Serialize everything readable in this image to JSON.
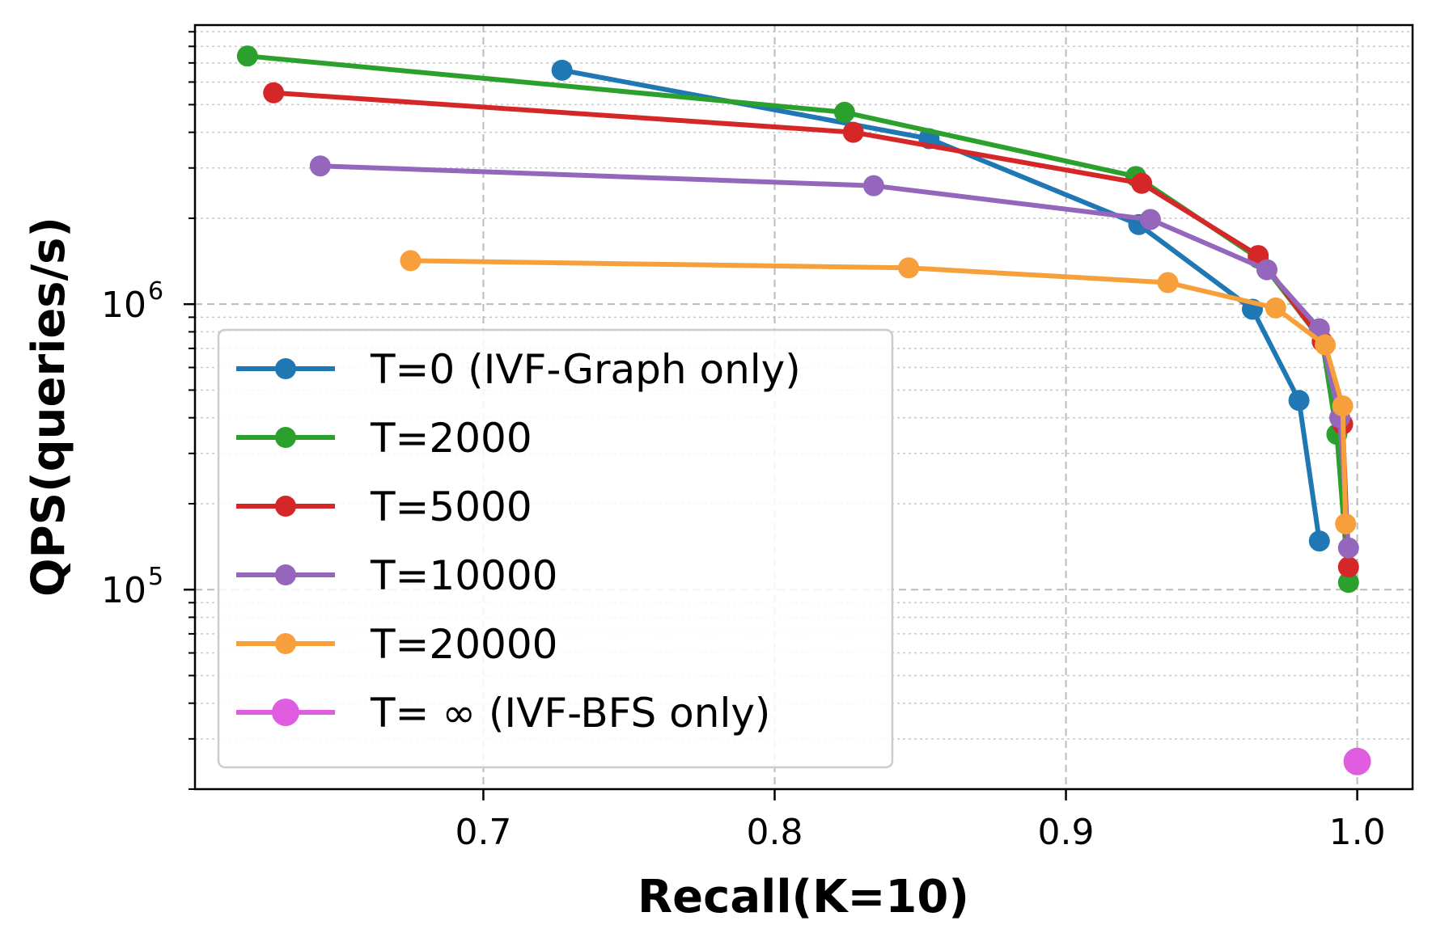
{
  "chart_data": {
    "type": "line",
    "xlabel": "Recall(K=10)",
    "ylabel": "QPS(queries/s)",
    "x_ticks": [
      0.7,
      0.8,
      0.9,
      1.0
    ],
    "x_tick_labels": [
      "0.7",
      "0.8",
      "0.9",
      "1.0"
    ],
    "y_ticks": [
      100000,
      1000000
    ],
    "y_tick_labels": [
      {
        "base": "10",
        "exp": "5"
      },
      {
        "base": "10",
        "exp": "6"
      }
    ],
    "xlim": [
      0.601,
      1.019
    ],
    "ylim": [
      20000,
      9500000
    ],
    "yscale": "log",
    "grid": true,
    "legend_position": "lower-left",
    "series": [
      {
        "name": "T=0 (IVF-Graph only)",
        "color": "#1f77b4",
        "x": [
          0.727,
          0.853,
          0.925,
          0.964,
          0.98,
          0.987
        ],
        "y": [
          6600000,
          3800000,
          1900000,
          960000,
          460000,
          148000
        ]
      },
      {
        "name": "T=2000",
        "color": "#2ca02c",
        "x": [
          0.619,
          0.824,
          0.924,
          0.966,
          0.988,
          0.993,
          0.997
        ],
        "y": [
          7400000,
          4700000,
          2800000,
          1450000,
          740000,
          350000,
          106000
        ]
      },
      {
        "name": "T=5000",
        "color": "#d62728",
        "x": [
          0.628,
          0.827,
          0.926,
          0.966,
          0.988,
          0.995,
          0.997
        ],
        "y": [
          5500000,
          4000000,
          2650000,
          1480000,
          740000,
          380000,
          120000
        ]
      },
      {
        "name": "T=10000",
        "color": "#9467bd",
        "x": [
          0.644,
          0.834,
          0.929,
          0.969,
          0.987,
          0.994,
          0.997
        ],
        "y": [
          3050000,
          2600000,
          1980000,
          1320000,
          820000,
          400000,
          140000
        ]
      },
      {
        "name": "T=20000",
        "color": "#f7a03b",
        "x": [
          0.675,
          0.846,
          0.935,
          0.972,
          0.989,
          0.995,
          0.996
        ],
        "y": [
          1420000,
          1340000,
          1190000,
          970000,
          720000,
          440000,
          170000
        ]
      },
      {
        "name": "T= ∞ (IVF-BFS only)",
        "color": "#e05ce0",
        "marker": "large",
        "x": [
          1.0
        ],
        "y": [
          25000
        ]
      }
    ]
  }
}
